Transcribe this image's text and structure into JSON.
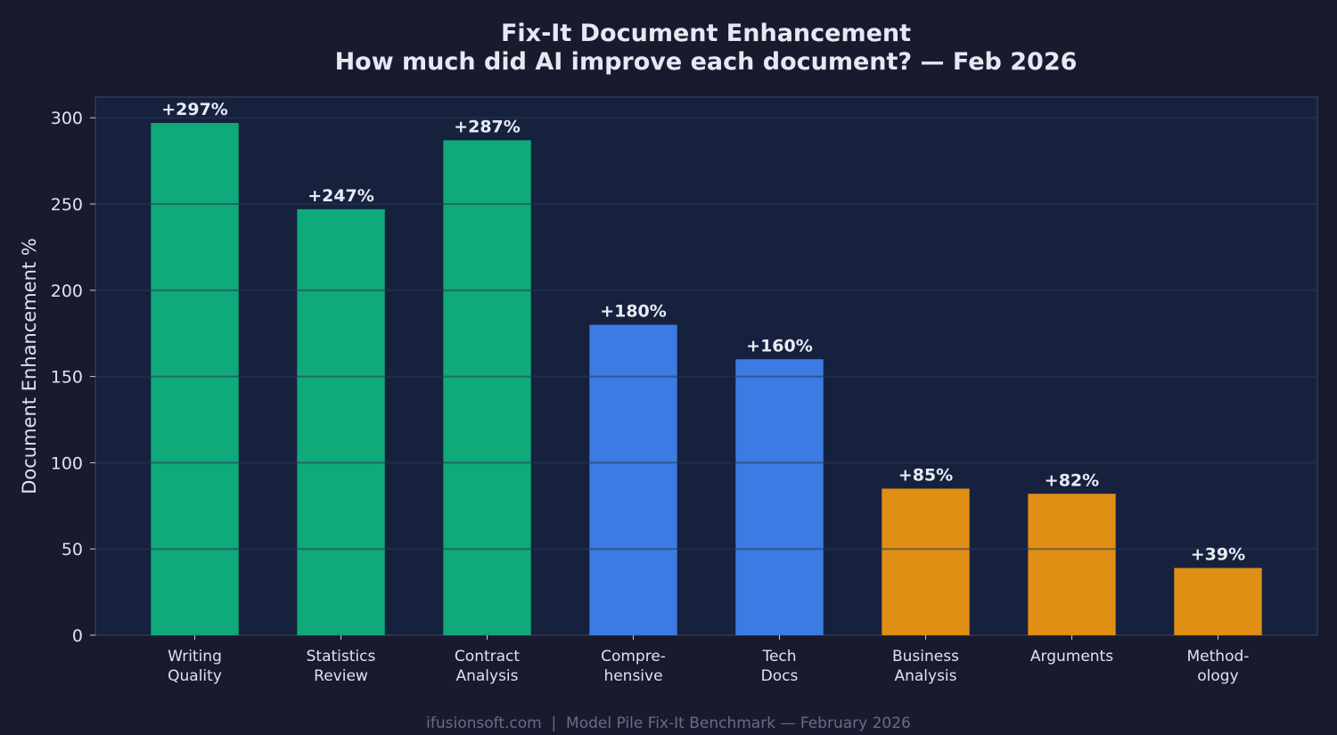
{
  "chart_data": {
    "type": "bar",
    "title": "Fix-It Document Enhancement",
    "subtitle": "How much did AI improve each document? — Feb 2026",
    "xlabel": "",
    "ylabel": "Document Enhancement %",
    "categories": [
      [
        "Writing",
        "Quality"
      ],
      [
        "Statistics",
        "Review"
      ],
      [
        "Contract",
        "Analysis"
      ],
      [
        "Compre-",
        "hensive"
      ],
      [
        "Tech",
        "Docs"
      ],
      [
        "Business",
        "Analysis"
      ],
      [
        "Arguments"
      ],
      [
        "Method-",
        "ology"
      ]
    ],
    "values": [
      297,
      247,
      287,
      180,
      160,
      85,
      82,
      39
    ],
    "data_labels": [
      "+297%",
      "+247%",
      "+287%",
      "+180%",
      "+160%",
      "+85%",
      "+82%",
      "+39%"
    ],
    "bar_colors": [
      "#10a97a",
      "#10a97a",
      "#10a97a",
      "#3b7be3",
      "#3b7be3",
      "#df8f13",
      "#df8f13",
      "#df8f13"
    ],
    "ylim": [
      0,
      312
    ],
    "yticks": [
      0,
      50,
      100,
      150,
      200,
      250,
      300
    ],
    "grid": true,
    "legend": "none"
  },
  "footer": "ifusionsoft.com  |  Model Pile Fix-It Benchmark — February 2026",
  "colors": {
    "background": "#1a1a2e",
    "plot_background": "#16213e"
  }
}
